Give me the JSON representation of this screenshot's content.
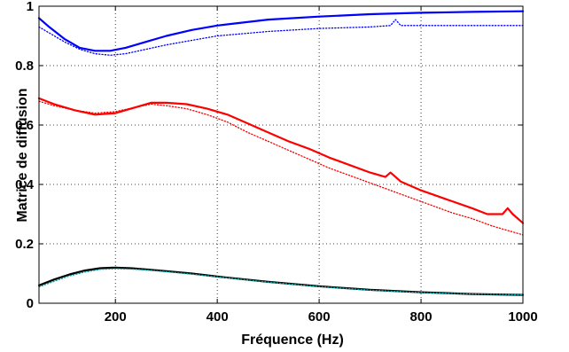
{
  "chart_data": {
    "type": "line",
    "title": "",
    "xlabel": "Fréquence (Hz)",
    "ylabel": "Matrice de diffusion",
    "xlim": [
      50,
      1000
    ],
    "ylim": [
      0,
      1
    ],
    "xticks": [
      200,
      400,
      600,
      800,
      1000
    ],
    "yticks": [
      0,
      0.2,
      0.4,
      0.6,
      0.8,
      1
    ],
    "xtick_labels": [
      "200",
      "400",
      "600",
      "800",
      "1000"
    ],
    "ytick_labels": [
      "0",
      "0.2",
      "0.4",
      "0.6",
      "0.8",
      "1"
    ],
    "grid": true,
    "legend": "none",
    "series": [
      {
        "color": "#0000ff",
        "style": "solid",
        "x": [
          50,
          70,
          100,
          130,
          160,
          190,
          220,
          260,
          300,
          350,
          400,
          500,
          600,
          700,
          800,
          900,
          1000
        ],
        "y": [
          0.96,
          0.93,
          0.89,
          0.86,
          0.85,
          0.85,
          0.86,
          0.88,
          0.9,
          0.92,
          0.935,
          0.955,
          0.965,
          0.973,
          0.978,
          0.981,
          0.983
        ]
      },
      {
        "color": "#0000ff",
        "style": "dotted",
        "x": [
          50,
          70,
          100,
          130,
          160,
          190,
          220,
          260,
          300,
          350,
          400,
          500,
          600,
          700,
          740,
          750,
          760,
          800,
          900,
          1000
        ],
        "y": [
          0.93,
          0.91,
          0.88,
          0.855,
          0.84,
          0.835,
          0.84,
          0.855,
          0.87,
          0.885,
          0.9,
          0.915,
          0.925,
          0.93,
          0.935,
          0.955,
          0.935,
          0.935,
          0.935,
          0.935
        ]
      },
      {
        "color": "#ff0000",
        "style": "solid",
        "x": [
          50,
          80,
          120,
          160,
          200,
          240,
          270,
          300,
          340,
          380,
          420,
          460,
          500,
          540,
          580,
          620,
          660,
          700,
          730,
          740,
          760,
          800,
          850,
          900,
          930,
          960,
          970,
          980,
          1000
        ],
        "y": [
          0.69,
          0.67,
          0.65,
          0.635,
          0.64,
          0.66,
          0.675,
          0.675,
          0.67,
          0.655,
          0.635,
          0.605,
          0.575,
          0.545,
          0.52,
          0.49,
          0.465,
          0.44,
          0.425,
          0.44,
          0.41,
          0.38,
          0.35,
          0.32,
          0.3,
          0.3,
          0.32,
          0.3,
          0.27
        ]
      },
      {
        "color": "#ff0000",
        "style": "dotted",
        "x": [
          50,
          80,
          120,
          160,
          200,
          240,
          270,
          300,
          340,
          380,
          420,
          460,
          500,
          540,
          580,
          620,
          660,
          700,
          740,
          780,
          820,
          860,
          900,
          940,
          1000
        ],
        "y": [
          0.68,
          0.665,
          0.65,
          0.64,
          0.645,
          0.66,
          0.67,
          0.665,
          0.655,
          0.635,
          0.61,
          0.575,
          0.545,
          0.515,
          0.485,
          0.455,
          0.43,
          0.405,
          0.38,
          0.355,
          0.33,
          0.305,
          0.285,
          0.26,
          0.23
        ]
      },
      {
        "color": "#000000",
        "style": "solid",
        "x": [
          50,
          80,
          110,
          140,
          170,
          200,
          230,
          260,
          300,
          350,
          400,
          500,
          600,
          700,
          800,
          900,
          1000
        ],
        "y": [
          0.06,
          0.08,
          0.097,
          0.11,
          0.118,
          0.12,
          0.118,
          0.114,
          0.108,
          0.1,
          0.09,
          0.072,
          0.057,
          0.045,
          0.037,
          0.031,
          0.028
        ]
      },
      {
        "color": "#00a0a0",
        "style": "dotted",
        "x": [
          50,
          80,
          110,
          140,
          170,
          200,
          230,
          260,
          300,
          350,
          400,
          500,
          600,
          700,
          800,
          900,
          1000
        ],
        "y": [
          0.055,
          0.074,
          0.092,
          0.105,
          0.114,
          0.116,
          0.115,
          0.112,
          0.106,
          0.098,
          0.089,
          0.071,
          0.056,
          0.044,
          0.036,
          0.031,
          0.028
        ]
      }
    ]
  }
}
